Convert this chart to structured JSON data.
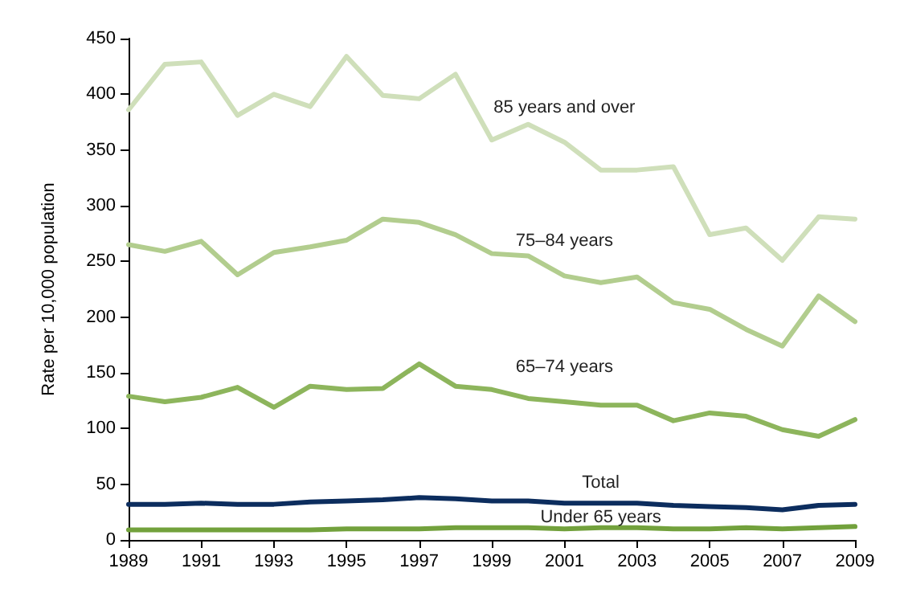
{
  "chart_data": {
    "type": "line",
    "ylabel": "Rate per 10,000 population",
    "x": [
      1989,
      1990,
      1991,
      1992,
      1993,
      1994,
      1995,
      1996,
      1997,
      1998,
      1999,
      2000,
      2001,
      2002,
      2003,
      2004,
      2005,
      2006,
      2007,
      2008,
      2009
    ],
    "series": [
      {
        "name": "85 years and over",
        "color": "#cfdfba",
        "values": [
          386,
          427,
          429,
          381,
          400,
          389,
          434,
          399,
          396,
          418,
          359,
          373,
          357,
          332,
          332,
          335,
          274,
          280,
          251,
          290,
          288
        ]
      },
      {
        "name": "75–84 years",
        "color": "#b2cd8e",
        "values": [
          265,
          259,
          268,
          238,
          258,
          263,
          269,
          288,
          285,
          274,
          257,
          255,
          237,
          231,
          236,
          213,
          207,
          189,
          174,
          219,
          196
        ]
      },
      {
        "name": "65–74 years",
        "color": "#8db55c",
        "values": [
          129,
          124,
          128,
          137,
          119,
          138,
          135,
          136,
          158,
          138,
          135,
          127,
          124,
          121,
          121,
          107,
          114,
          111,
          99,
          93,
          108
        ]
      },
      {
        "name": "Total",
        "color": "#0c2d5e",
        "values": [
          32,
          32,
          33,
          32,
          32,
          34,
          35,
          36,
          38,
          37,
          35,
          35,
          33,
          33,
          33,
          31,
          30,
          29,
          27,
          31,
          32
        ]
      },
      {
        "name": "Under 65 years",
        "color": "#72a13c",
        "values": [
          9,
          9,
          9,
          9,
          9,
          9,
          10,
          10,
          10,
          11,
          11,
          11,
          10,
          11,
          11,
          10,
          10,
          11,
          10,
          11,
          12
        ]
      }
    ],
    "xlim": [
      1989,
      2009
    ],
    "xticks": [
      1989,
      1991,
      1993,
      1995,
      1997,
      1999,
      2001,
      2003,
      2005,
      2007,
      2009
    ],
    "ylim": [
      0,
      450
    ],
    "yticks": [
      0,
      50,
      100,
      150,
      200,
      250,
      300,
      350,
      400,
      450
    ],
    "grid": false,
    "marker": "none",
    "line_style": "solid"
  }
}
